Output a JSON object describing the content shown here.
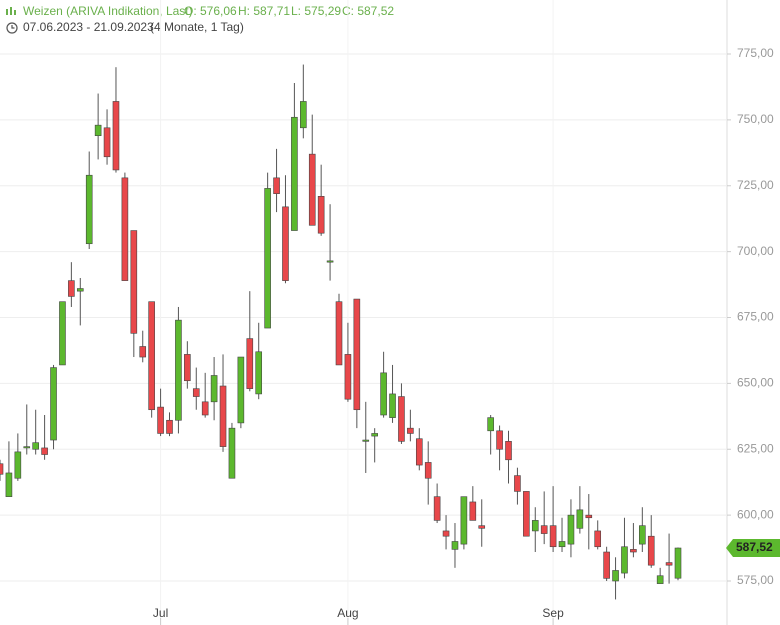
{
  "chart_data": {
    "type": "candlestick",
    "title": "Weizen (ARIVA Indikation, Last)",
    "ohlc_labels": [
      "O: 576,06",
      "H: 587,71",
      "L: 575,29",
      "C: 587,52"
    ],
    "date_range": "07.06.2023 - 21.09.2023",
    "period": "(4 Monate, 1 Tag)",
    "categories": [
      null,
      null,
      null,
      null,
      null,
      null,
      null,
      null,
      null,
      null,
      null,
      null,
      null,
      null,
      null,
      null,
      null,
      null,
      "Jul",
      null,
      null,
      null,
      null,
      null,
      null,
      null,
      null,
      null,
      null,
      null,
      null,
      null,
      null,
      null,
      null,
      null,
      null,
      null,
      null,
      "Aug",
      null,
      null,
      null,
      null,
      null,
      null,
      null,
      null,
      null,
      null,
      null,
      null,
      null,
      null,
      null,
      null,
      null,
      null,
      null,
      null,
      null,
      null,
      "Sep",
      null,
      null,
      null,
      null,
      null,
      null,
      null,
      null,
      null,
      null,
      null,
      null,
      null,
      null
    ],
    "series": [
      {
        "up_color": "#5cb82e",
        "down_color": "#e8474a",
        "open": [
          619.5,
          607,
          614,
          625.5,
          625,
          625.5,
          628.5,
          657,
          689,
          685,
          703,
          744,
          747,
          757,
          728,
          708,
          664,
          681,
          641,
          636,
          636,
          661,
          648,
          643,
          643,
          649,
          614,
          635,
          667,
          646,
          671,
          728,
          717,
          708,
          747,
          737,
          721,
          696,
          681,
          661,
          682,
          628,
          630,
          638,
          637,
          645,
          633,
          629,
          620,
          607,
          594,
          587,
          589,
          605,
          596,
          632,
          632,
          628,
          615,
          609,
          594,
          596,
          596,
          588,
          589,
          595,
          600,
          594,
          586,
          575,
          578,
          587,
          589,
          592,
          574,
          582,
          576.06
        ],
        "high": [
          621,
          628,
          631,
          642,
          640,
          638,
          657,
          681,
          696,
          690,
          738,
          760,
          754,
          770,
          730,
          708,
          670,
          681,
          648,
          639,
          679,
          666,
          656,
          654,
          660,
          661,
          635,
          660,
          685,
          673,
          730,
          739,
          729,
          764,
          771,
          752,
          733,
          718,
          684,
          673,
          682,
          643,
          633,
          662,
          657,
          650,
          640,
          633,
          628,
          612,
          600,
          597,
          607,
          611,
          606,
          638,
          634,
          632,
          618,
          609,
          603,
          609,
          611,
          599,
          606,
          611,
          608,
          598,
          588,
          584,
          599,
          597,
          603,
          600,
          580,
          593,
          587.71
        ],
        "low": [
          613,
          607,
          613,
          623,
          623,
          621,
          625,
          657,
          679,
          672,
          701,
          735,
          733,
          730,
          689,
          660,
          658,
          637,
          630,
          630,
          631,
          648,
          640,
          637,
          636,
          624,
          614,
          633,
          647,
          644,
          671,
          715,
          688,
          708,
          743,
          712,
          706,
          689,
          657,
          643,
          633,
          616,
          620,
          637,
          635,
          627,
          628,
          617,
          604,
          597,
          587,
          580,
          587,
          598,
          588,
          623,
          617,
          612,
          604,
          592,
          586,
          589,
          586,
          586,
          584,
          593,
          587,
          587,
          575,
          568,
          576,
          584,
          586,
          580,
          574,
          574,
          575.29
        ],
        "close": [
          615.5,
          616,
          624,
          626,
          627.5,
          623,
          656,
          681,
          683,
          686,
          729,
          748,
          736,
          731,
          689,
          669,
          660,
          640,
          631,
          631,
          674,
          651,
          645,
          638,
          653,
          626,
          633,
          660,
          648,
          662,
          724,
          722,
          689,
          751,
          757,
          710,
          707,
          696.5,
          657,
          644,
          640,
          628.5,
          631,
          654,
          646,
          628,
          631,
          619,
          614,
          598,
          592,
          590,
          607,
          598,
          595,
          637,
          625,
          621,
          609,
          592,
          598,
          593,
          588,
          590,
          600,
          602,
          599,
          588,
          576,
          579,
          588,
          586,
          596,
          581,
          577,
          581,
          587.52
        ]
      }
    ],
    "current_price": 587.52,
    "current_price_label": "587,52",
    "ylim": [
      558.3,
      795.5
    ],
    "yticks": [
      {
        "value": 575,
        "label": "575,00"
      },
      {
        "value": 600,
        "label": "600,00"
      },
      {
        "value": 625,
        "label": "625,00"
      },
      {
        "value": 650,
        "label": "650,00"
      },
      {
        "value": 675,
        "label": "675,00"
      },
      {
        "value": 700,
        "label": "700,00"
      },
      {
        "value": 725,
        "label": "725,00"
      },
      {
        "value": 750,
        "label": "750,00"
      },
      {
        "value": 775,
        "label": "775,00"
      }
    ],
    "grid": true
  }
}
